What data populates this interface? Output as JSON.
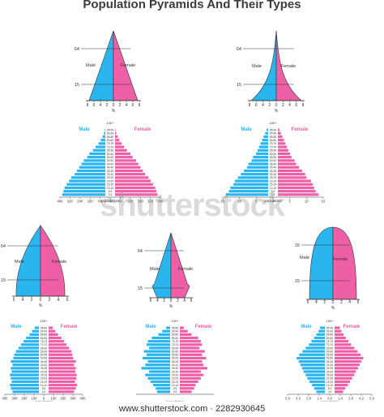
{
  "title": "Population Pyramids And Their Types",
  "watermark": "shutterstock",
  "footer": "www.shutterstock.com · 2282930645",
  "colors": {
    "male": "#2bb5ee",
    "female": "#ee5fa8",
    "outline": "#333333"
  },
  "labels": {
    "male": "Male",
    "female": "Female",
    "percent": "%",
    "population": "population",
    "hundred_plus": "100+"
  },
  "age_groups": [
    "0-4",
    "5-9",
    "10-14",
    "15-19",
    "20-24",
    "25-29",
    "30-34",
    "35-39",
    "40-44",
    "45-49",
    "50-54",
    "55-59",
    "60-64",
    "65-69",
    "70-74",
    "75-79",
    "80-84",
    "85-89",
    "90-94",
    "95-99"
  ],
  "diagrams": [
    {
      "id": "shape-1",
      "age_marks": [
        "64",
        "15"
      ],
      "ticks": [
        "8",
        "6",
        "4",
        "2",
        "0",
        "2",
        "4",
        "6",
        "8"
      ]
    },
    {
      "id": "shape-2",
      "age_marks": [
        "64",
        "15"
      ],
      "ticks": [
        "8",
        "6",
        "4",
        "2",
        "0",
        "2",
        "4",
        "6",
        "8"
      ]
    },
    {
      "id": "shape-3",
      "age_marks": [
        "64",
        "15"
      ],
      "ticks": [
        "6",
        "4",
        "2",
        "0",
        "2",
        "4",
        "6"
      ]
    },
    {
      "id": "shape-4",
      "age_marks": [
        "64",
        "15"
      ],
      "ticks": [
        "6",
        "4",
        "2",
        "0",
        "2",
        "4",
        "6"
      ]
    },
    {
      "id": "shape-5",
      "age_marks": [
        "15",
        "15"
      ],
      "ticks": [
        "6",
        "4",
        "2",
        "0",
        "2",
        "4",
        "6"
      ]
    }
  ],
  "chart_data": [
    {
      "type": "bar",
      "id": "pyramid-1",
      "title": "",
      "xlabel": "population",
      "xticks": [
        "400",
        "320",
        "240",
        "160",
        "80",
        "0",
        "80",
        "160",
        "240",
        "320",
        "400"
      ],
      "categories": [
        "0-4",
        "5-9",
        "10-14",
        "15-19",
        "20-24",
        "25-29",
        "30-34",
        "35-39",
        "40-44",
        "45-49",
        "50-54",
        "55-59",
        "60-64",
        "65-69",
        "70-74",
        "75-79",
        "80-84",
        "85-89",
        "90-94",
        "95-99"
      ],
      "series": [
        {
          "name": "Male",
          "values": [
            380,
            370,
            360,
            340,
            320,
            300,
            270,
            250,
            230,
            210,
            190,
            160,
            140,
            110,
            85,
            60,
            40,
            25,
            12,
            5
          ]
        },
        {
          "name": "Female",
          "values": [
            375,
            365,
            355,
            335,
            315,
            295,
            265,
            245,
            225,
            205,
            185,
            155,
            135,
            105,
            80,
            58,
            38,
            24,
            11,
            5
          ]
        }
      ]
    },
    {
      "type": "bar",
      "id": "pyramid-2",
      "title": "",
      "xlabel": "population",
      "xticks": [
        "15",
        "10",
        "5",
        "0",
        "5",
        "10",
        "15"
      ],
      "categories": [
        "0-4",
        "5-9",
        "10-14",
        "15-19",
        "20-24",
        "25-29",
        "30-34",
        "35-39",
        "40-44",
        "45-49",
        "50-54",
        "55-59",
        "60-64",
        "65-69",
        "70-74",
        "75-79",
        "80-84",
        "85-89",
        "90-94",
        "95-99"
      ],
      "series": [
        {
          "name": "Male",
          "values": [
            14,
            13,
            12.5,
            11.5,
            11,
            10,
            9,
            8,
            7,
            6.5,
            5.5,
            5,
            4,
            3.5,
            3,
            2.5,
            2,
            1.5,
            1,
            0.5
          ]
        },
        {
          "name": "Female",
          "values": [
            13.5,
            12.5,
            12,
            11.5,
            11,
            9.5,
            9,
            8,
            7,
            6,
            5.5,
            4.5,
            4,
            3.5,
            3,
            2.5,
            2,
            1.5,
            1,
            0.5
          ]
        }
      ]
    },
    {
      "type": "bar",
      "id": "pyramid-3",
      "title": "",
      "xlabel": "population",
      "xticks": [
        "400",
        "300",
        "200",
        "100",
        "0",
        "100",
        "200",
        "300",
        "400"
      ],
      "categories": [
        "0-4",
        "5-9",
        "10-14",
        "15-19",
        "20-24",
        "25-29",
        "30-34",
        "35-39",
        "40-44",
        "45-49",
        "50-54",
        "55-59",
        "60-64",
        "65-69",
        "70-74",
        "75-79",
        "80-84",
        "85-89",
        "90-94",
        "95-99"
      ],
      "series": [
        {
          "name": "Male",
          "values": [
            310,
            330,
            340,
            320,
            330,
            340,
            320,
            330,
            310,
            330,
            300,
            290,
            270,
            240,
            210,
            180,
            150,
            110,
            80,
            50
          ]
        },
        {
          "name": "Female",
          "values": [
            300,
            320,
            335,
            310,
            325,
            330,
            315,
            320,
            300,
            320,
            290,
            280,
            270,
            240,
            210,
            180,
            150,
            110,
            80,
            50
          ]
        }
      ]
    },
    {
      "type": "bar",
      "id": "pyramid-4",
      "title": "",
      "xlabel": "population",
      "categories": [
        "0-4",
        "5-9",
        "10-14",
        "15-19",
        "20-24",
        "25-29",
        "30-34",
        "35-39",
        "40-44",
        "45-49",
        "50-54",
        "55-59",
        "60-64",
        "65-69",
        "70-74",
        "75-79",
        "80-84",
        "85-89",
        "90-94",
        "95-99"
      ],
      "series": [
        {
          "name": "Male",
          "values": [
            50,
            55,
            65,
            75,
            85,
            95,
            80,
            110,
            95,
            85,
            105,
            90,
            100,
            80,
            90,
            85,
            70,
            45,
            30,
            15
          ]
        },
        {
          "name": "Female",
          "values": [
            45,
            55,
            60,
            70,
            80,
            90,
            80,
            105,
            90,
            85,
            100,
            85,
            95,
            75,
            85,
            80,
            70,
            45,
            30,
            15
          ]
        }
      ]
    },
    {
      "type": "bar",
      "id": "pyramid-5",
      "title": "",
      "xlabel": "population",
      "xticks": [
        "5.6",
        "4.2",
        "2.8",
        "1.4",
        "0.0",
        "1.4",
        "2.8",
        "4.2",
        "5.6"
      ],
      "categories": [
        "0-4",
        "5-9",
        "10-14",
        "15-19",
        "20-24",
        "25-29",
        "30-34",
        "35-39",
        "40-44",
        "45-49",
        "50-54",
        "55-59",
        "60-64",
        "65-69",
        "70-74",
        "75-79",
        "80-84",
        "85-89",
        "90-94",
        "95-99"
      ],
      "series": [
        {
          "name": "Male",
          "values": [
            1.6,
            2.0,
            2.4,
            2.9,
            3.3,
            3.6,
            4.0,
            4.3,
            4.6,
            4.9,
            5.3,
            4.8,
            4.2,
            3.6,
            3.0,
            2.5,
            2.0,
            1.6,
            1.2,
            0.9
          ]
        },
        {
          "name": "Female",
          "values": [
            1.6,
            2.0,
            2.5,
            2.9,
            3.3,
            3.7,
            4.0,
            4.4,
            4.7,
            5.0,
            5.4,
            4.9,
            4.3,
            3.7,
            3.1,
            2.6,
            2.1,
            1.7,
            1.3,
            1.0
          ]
        }
      ]
    }
  ]
}
